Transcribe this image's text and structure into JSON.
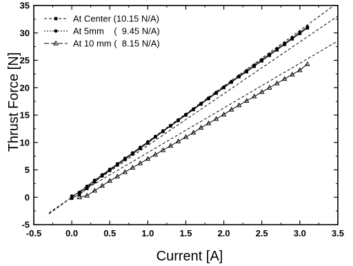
{
  "chart_data": {
    "type": "line",
    "xlabel": "Current [A]",
    "ylabel": "Thrust Force [N]",
    "xlim": [
      -0.5,
      3.5
    ],
    "ylim": [
      -5,
      35
    ],
    "xticks": [
      "-0.5",
      "0.0",
      "0.5",
      "1.0",
      "1.5",
      "2.0",
      "2.5",
      "3.0",
      "3.5"
    ],
    "yticks": [
      "-5",
      "0",
      "5",
      "10",
      "15",
      "20",
      "25",
      "30",
      "35"
    ],
    "grid": false,
    "legend_position": "top-left",
    "series": [
      {
        "name": "At Center (10.15 N/A)",
        "marker": "square",
        "fit_slope": 10.15,
        "fit_range": [
          -0.3,
          3.5
        ],
        "x": [
          0.0,
          0.1,
          0.2,
          0.3,
          0.4,
          0.5,
          0.6,
          0.7,
          0.8,
          0.9,
          1.0,
          1.1,
          1.2,
          1.3,
          1.4,
          1.5,
          1.6,
          1.7,
          1.8,
          1.9,
          2.0,
          2.1,
          2.2,
          2.3,
          2.4,
          2.5,
          2.6,
          2.7,
          2.8,
          2.9,
          3.0,
          3.1
        ],
        "y": [
          -0.2,
          0.5,
          1.6,
          2.8,
          3.9,
          4.9,
          5.9,
          6.9,
          7.9,
          8.9,
          9.9,
          11.0,
          12.0,
          13.0,
          14.0,
          15.0,
          16.0,
          17.0,
          18.0,
          19.0,
          20.0,
          21.0,
          22.0,
          22.9,
          23.9,
          24.9,
          25.9,
          26.9,
          27.9,
          28.9,
          29.9,
          30.9
        ]
      },
      {
        "name": "At 5mm    (  9.45 N/A)",
        "marker": "circle",
        "fit_slope": 9.45,
        "fit_range": [
          -0.3,
          3.5
        ],
        "x": [
          0.0,
          0.1,
          0.2,
          0.3,
          0.4,
          0.5,
          0.6,
          0.7,
          0.8,
          0.9,
          1.0,
          1.1,
          1.2,
          1.3,
          1.4,
          1.5,
          1.6,
          1.7,
          1.8,
          1.9,
          2.0,
          2.1,
          2.2,
          2.3,
          2.4,
          2.5,
          2.6,
          2.7,
          2.8,
          2.9,
          3.0,
          3.1
        ],
        "y": [
          0.2,
          0.9,
          2.0,
          3.1,
          4.1,
          5.1,
          6.1,
          7.1,
          8.1,
          9.1,
          10.1,
          11.1,
          12.1,
          13.1,
          14.1,
          15.1,
          16.1,
          17.1,
          18.1,
          19.1,
          20.1,
          21.1,
          22.1,
          23.1,
          24.1,
          25.1,
          26.1,
          27.1,
          28.1,
          29.1,
          30.1,
          31.1
        ]
      },
      {
        "name": "At 10 mm (  8.15 N/A)",
        "marker": "triangle",
        "fit_slope": 8.15,
        "fit_range": [
          0.1,
          3.5
        ],
        "x": [
          0.1,
          0.2,
          0.3,
          0.4,
          0.5,
          0.6,
          0.7,
          0.8,
          0.9,
          1.0,
          1.1,
          1.2,
          1.3,
          1.4,
          1.5,
          1.6,
          1.7,
          1.8,
          1.9,
          2.0,
          2.1,
          2.2,
          2.3,
          2.4,
          2.5,
          2.6,
          2.7,
          2.8,
          2.9,
          3.0,
          3.1
        ],
        "y": [
          0.0,
          0.3,
          1.2,
          2.1,
          3.0,
          3.8,
          4.6,
          5.4,
          6.2,
          7.0,
          7.8,
          8.6,
          9.4,
          10.2,
          11.0,
          11.8,
          12.7,
          13.5,
          14.3,
          15.1,
          16.0,
          16.8,
          17.6,
          18.4,
          19.2,
          20.0,
          20.8,
          21.6,
          22.4,
          23.2,
          24.3
        ]
      }
    ]
  }
}
